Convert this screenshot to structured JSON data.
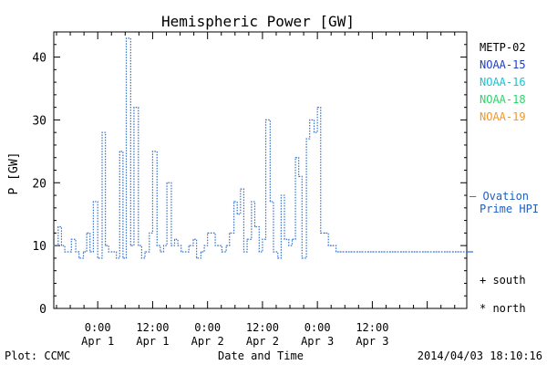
{
  "chart_data": {
    "type": "line",
    "title": "Hemispheric Power [GW]",
    "xlabel": "Date and Time",
    "ylabel": "P [GW]",
    "ylim": [
      0,
      44
    ],
    "yticks": [
      0,
      10,
      20,
      30,
      40
    ],
    "xlim": [
      -0.4,
      3.36
    ],
    "xticks": [
      {
        "x": 0.0,
        "time": "0:00",
        "date": "Apr 1"
      },
      {
        "x": 0.5,
        "time": "12:00",
        "date": "Apr 1"
      },
      {
        "x": 1.0,
        "time": "0:00",
        "date": "Apr 2"
      },
      {
        "x": 1.5,
        "time": "12:00",
        "date": "Apr 2"
      },
      {
        "x": 2.0,
        "time": "0:00",
        "date": "Apr 3"
      },
      {
        "x": 2.5,
        "time": "12:00",
        "date": "Apr 3"
      }
    ],
    "x_units": "days since 2014-04-01 00:00 UT",
    "legend": {
      "placement": "right",
      "entries": [
        {
          "name": "METP-02",
          "color": "#000000"
        },
        {
          "name": "NOAA-15",
          "color": "#1f3fbf"
        },
        {
          "name": "NOAA-16",
          "color": "#19c4cf"
        },
        {
          "name": "NOAA-18",
          "color": "#2fd36c"
        },
        {
          "name": "NOAA-19",
          "color": "#f0982a"
        }
      ]
    },
    "ovation": {
      "label_1": "— Ovation",
      "label_2": "Prime HPI",
      "color": "#1f5fbf"
    },
    "markers": {
      "south": "+ south",
      "north": "* north"
    },
    "series": [
      {
        "name": "Ovation Prime HPI",
        "color": "#2f6fd0",
        "step": true,
        "x": [
          -0.4,
          -0.36,
          -0.33,
          -0.3,
          -0.24,
          -0.2,
          -0.17,
          -0.13,
          -0.1,
          -0.07,
          -0.04,
          0.0,
          0.04,
          0.07,
          0.1,
          0.13,
          0.17,
          0.2,
          0.23,
          0.26,
          0.3,
          0.33,
          0.37,
          0.4,
          0.43,
          0.47,
          0.5,
          0.54,
          0.57,
          0.6,
          0.63,
          0.67,
          0.7,
          0.73,
          0.76,
          0.8,
          0.83,
          0.87,
          0.9,
          0.94,
          0.97,
          1.0,
          1.03,
          1.07,
          1.1,
          1.13,
          1.17,
          1.2,
          1.24,
          1.27,
          1.3,
          1.33,
          1.36,
          1.4,
          1.43,
          1.47,
          1.5,
          1.53,
          1.57,
          1.6,
          1.64,
          1.67,
          1.7,
          1.74,
          1.77,
          1.8,
          1.83,
          1.86,
          1.9,
          1.93,
          1.97,
          2.0,
          2.03,
          2.07,
          2.1,
          2.13,
          2.17,
          2.2,
          2.23,
          2.27,
          2.3,
          2.33,
          2.37,
          2.4,
          2.44,
          2.47,
          2.5,
          2.53,
          2.57,
          2.6,
          2.64,
          2.67,
          2.7,
          2.73,
          2.77,
          2.8,
          2.84,
          2.87,
          2.9,
          2.93,
          2.97,
          3.0,
          3.03,
          3.07,
          3.1,
          3.13,
          3.17,
          3.2,
          3.24,
          3.27,
          3.3,
          3.33
        ],
        "y": [
          10,
          13,
          10,
          9,
          11,
          9,
          8,
          9,
          12,
          9,
          17,
          8,
          28,
          10,
          9,
          9,
          8,
          25,
          8,
          43,
          10,
          32,
          10,
          8,
          9,
          12,
          25,
          10,
          9,
          10,
          20,
          10,
          11,
          10,
          9,
          9,
          10,
          11,
          8,
          9,
          10,
          12,
          12,
          10,
          10,
          9,
          10,
          12,
          17,
          15,
          19,
          9,
          11,
          17,
          13,
          9,
          11,
          30,
          17,
          9,
          8,
          18,
          11,
          10,
          11,
          24,
          21,
          8,
          27,
          30,
          28,
          32,
          12,
          12,
          10,
          10,
          9,
          9,
          9,
          9,
          9,
          9,
          9,
          9,
          9,
          9,
          9,
          9,
          9,
          9,
          9,
          9,
          9,
          9,
          9,
          9,
          9,
          9,
          9,
          9,
          9,
          9,
          9,
          9,
          9,
          9,
          9,
          9,
          9,
          9,
          9,
          9
        ]
      }
    ]
  },
  "footer": {
    "left": "Plot: CCMC",
    "right": "2014/04/03 18:10:16"
  }
}
